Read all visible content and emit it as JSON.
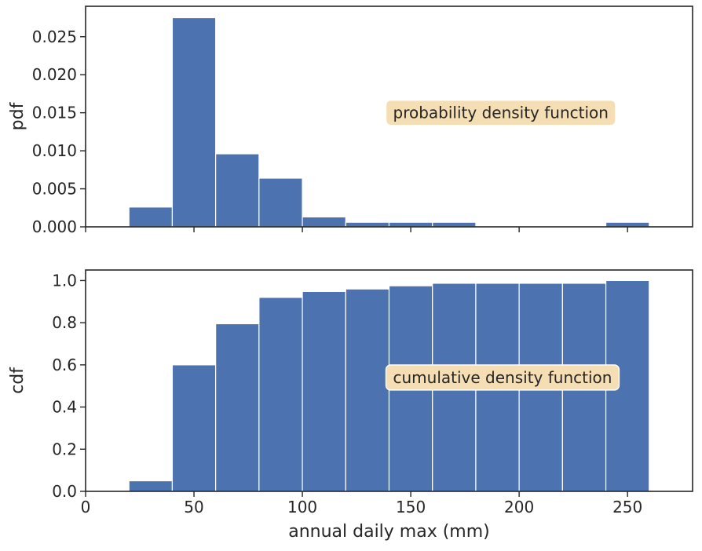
{
  "chart_data": [
    {
      "type": "bar",
      "panel": "top",
      "ylabel": "pdf",
      "xlim": [
        0,
        280
      ],
      "ylim": [
        0,
        0.029
      ],
      "bin_edges": [
        20,
        40,
        60,
        80,
        100,
        120,
        140,
        160,
        180,
        200,
        220,
        240,
        260
      ],
      "values": [
        0.0026,
        0.0275,
        0.0096,
        0.0064,
        0.0013,
        0.0006,
        0.0006,
        0.0006,
        0.0,
        0.0,
        0.0,
        0.0006
      ],
      "yticks": [
        0.0,
        0.005,
        0.01,
        0.015,
        0.02,
        0.025
      ],
      "ytick_labels": [
        "0.000",
        "0.005",
        "0.010",
        "0.015",
        "0.020",
        "0.025"
      ],
      "xticks": [
        0,
        50,
        100,
        150,
        200,
        250
      ],
      "annotation": "probability density function",
      "annotation_pos": [
        140,
        0.015
      ],
      "bar_color": "#4c72b0",
      "annotation_color": "#f5deb3"
    },
    {
      "type": "bar",
      "panel": "bottom",
      "ylabel": "cdf",
      "xlabel": "annual daily max (mm)",
      "xlim": [
        0,
        280
      ],
      "ylim": [
        0,
        1.05
      ],
      "bin_edges": [
        20,
        40,
        60,
        80,
        100,
        120,
        140,
        160,
        180,
        200,
        220,
        240,
        260
      ],
      "values": [
        0.05,
        0.6,
        0.795,
        0.92,
        0.948,
        0.96,
        0.975,
        0.987,
        0.987,
        0.987,
        0.987,
        1.0
      ],
      "yticks": [
        0.0,
        0.2,
        0.4,
        0.6,
        0.8,
        1.0
      ],
      "ytick_labels": [
        "0.0",
        "0.2",
        "0.4",
        "0.6",
        "0.8",
        "1.0"
      ],
      "xticks": [
        0,
        50,
        100,
        150,
        200,
        250
      ],
      "xtick_labels": [
        "0",
        "50",
        "100",
        "150",
        "200",
        "250"
      ],
      "annotation": "cumulative density function",
      "annotation_pos": [
        140,
        0.54
      ],
      "bar_color": "#4c72b0",
      "annotation_color": "#f5deb3"
    }
  ]
}
